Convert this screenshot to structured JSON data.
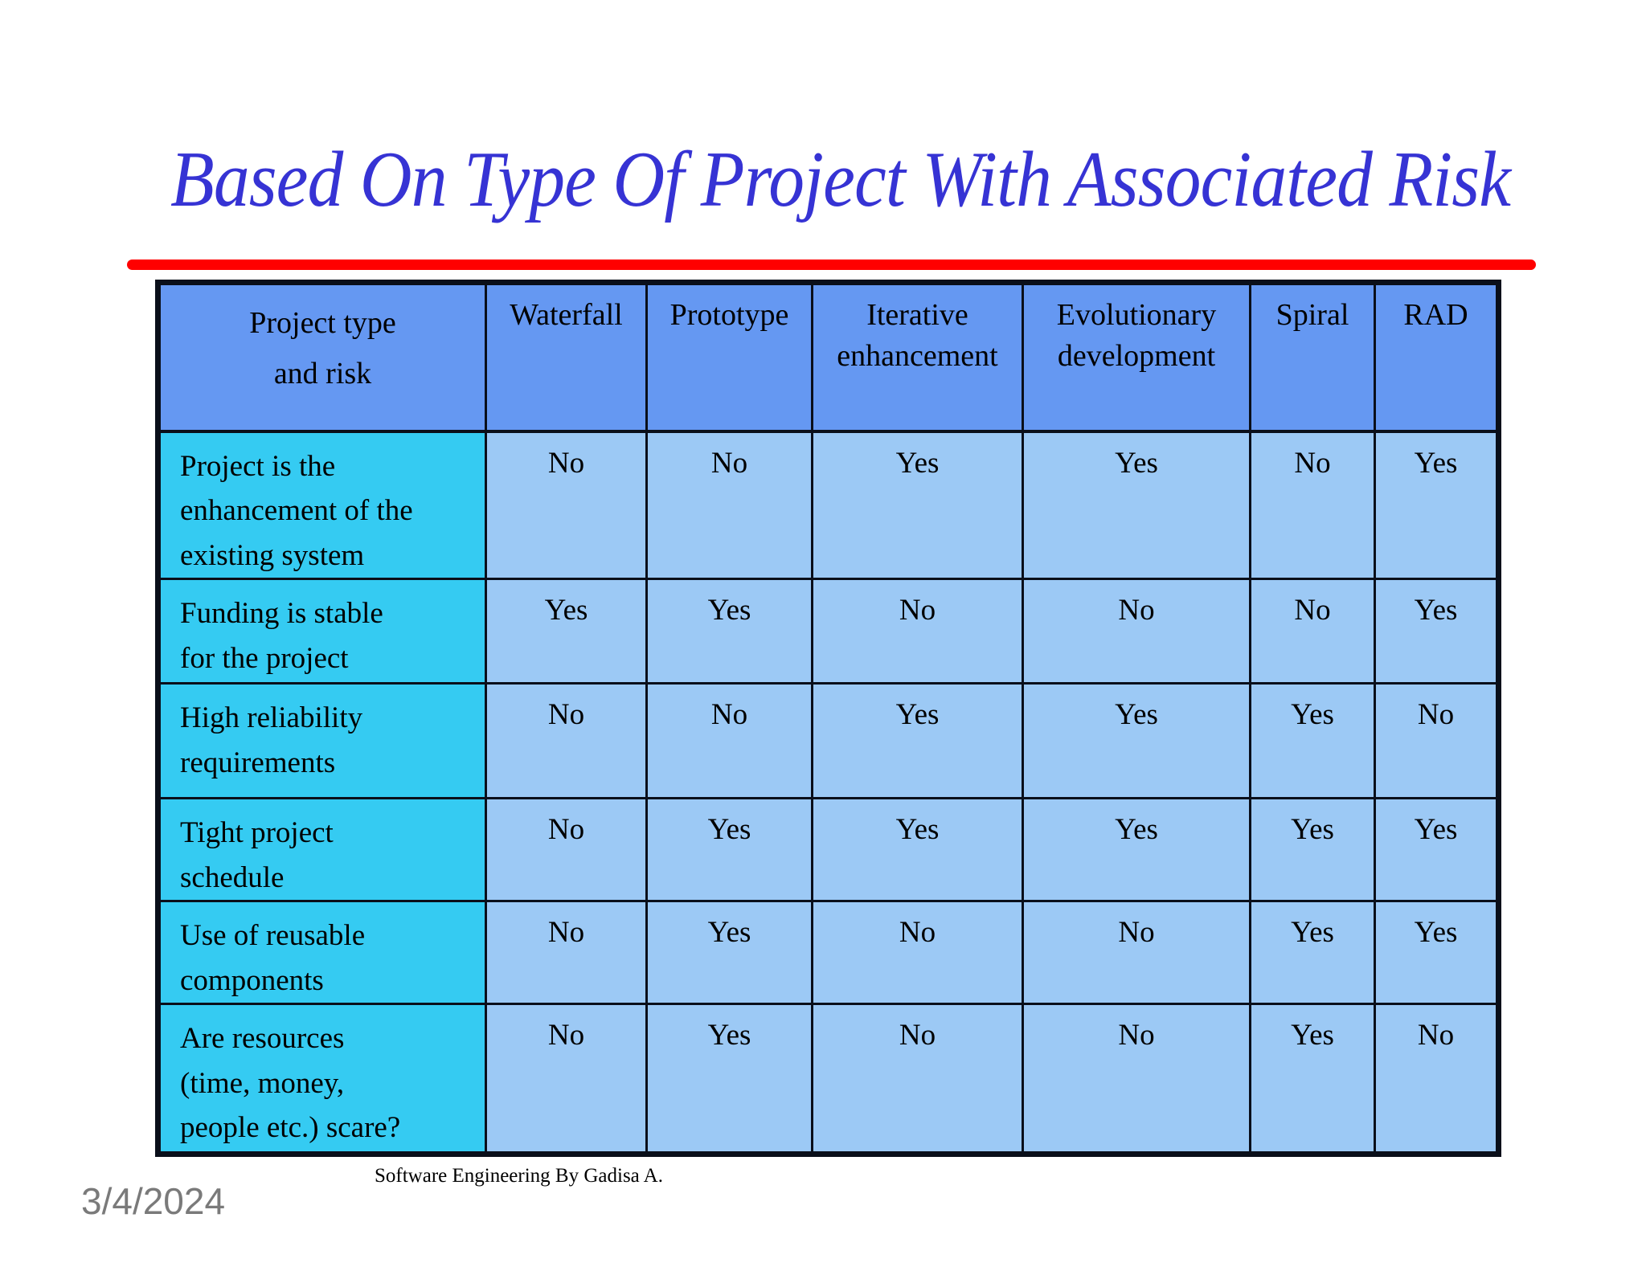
{
  "slide": {
    "title": "Based On Type Of Project With Associated Risk",
    "footer": "Software Engineering By Gadisa A.",
    "date": "3/4/2024"
  },
  "table": {
    "corner_label": "Project type\nand risk",
    "columns": [
      "Waterfall",
      "Prototype",
      "Iterative\nenhancement",
      "Evolutionary\ndevelopment",
      "Spiral",
      "RAD"
    ],
    "rows": [
      {
        "label": "Project is the\nenhancement of the\nexisting system",
        "values": [
          "No",
          "No",
          "Yes",
          "Yes",
          "No",
          "Yes"
        ]
      },
      {
        "label": "Funding is stable\nfor the project",
        "values": [
          "Yes",
          "Yes",
          "No",
          "No",
          "No",
          "Yes"
        ]
      },
      {
        "label": "High reliability\nrequirements",
        "values": [
          "No",
          "No",
          "Yes",
          "Yes",
          "Yes",
          "No"
        ]
      },
      {
        "label": "Tight project\nschedule",
        "values": [
          "No",
          "Yes",
          "Yes",
          "Yes",
          "Yes",
          "Yes"
        ]
      },
      {
        "label": "Use of reusable\ncomponents",
        "values": [
          "No",
          "Yes",
          "No",
          "No",
          "Yes",
          "Yes"
        ]
      },
      {
        "label": "Are resources\n(time, money,\npeople etc.) scare?",
        "values": [
          "No",
          "Yes",
          "No",
          "No",
          "Yes",
          "No"
        ]
      }
    ]
  },
  "colors": {
    "title_blue": "#3633d4",
    "line_red": "#ff0000",
    "header_blue": "#6598f2",
    "label_cyan": "#35cbf2",
    "cell_blue": "#9cc9f5",
    "border_black": "#0a0f1a",
    "date_gray": "#7a7a7a",
    "text_black": "#000000"
  }
}
